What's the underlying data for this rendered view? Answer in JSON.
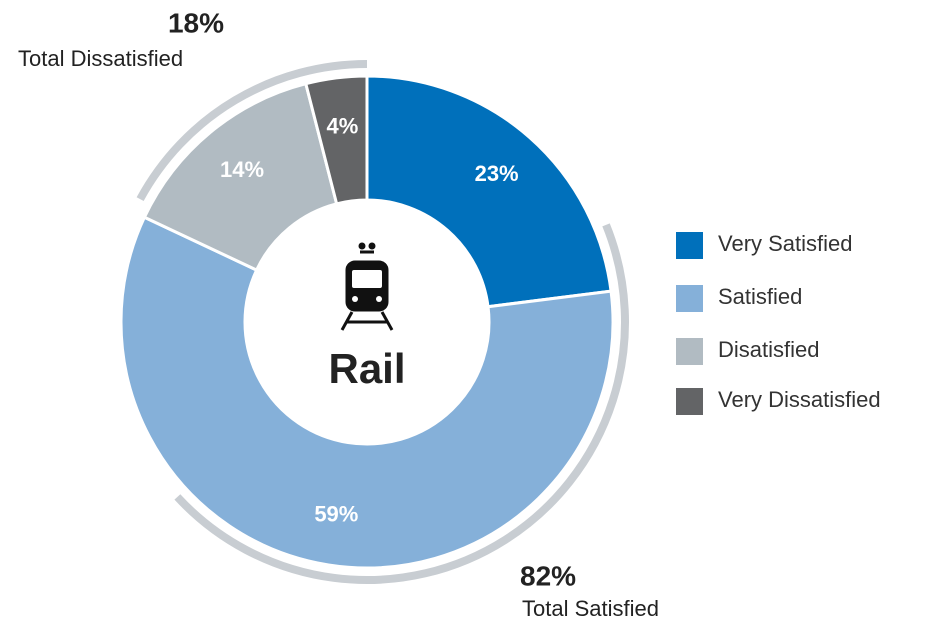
{
  "chart_data": {
    "type": "donut",
    "center_label": "Rail",
    "categories": [
      "Very Satisfied",
      "Satisfied",
      "Disatisfied",
      "Very Dissatisfied"
    ],
    "values": [
      23,
      59,
      14,
      4
    ],
    "value_labels": [
      "23%",
      "59%",
      "14%",
      "4%"
    ],
    "colors": [
      "#0070bb",
      "#85b0d9",
      "#b1bbc2",
      "#636466"
    ],
    "totals": {
      "labels": [
        "Total Satisfied",
        "Total Dissatisfied"
      ],
      "values": [
        82,
        18
      ],
      "value_labels": [
        "82%",
        "18%"
      ],
      "color": "#c8cdd2"
    }
  }
}
